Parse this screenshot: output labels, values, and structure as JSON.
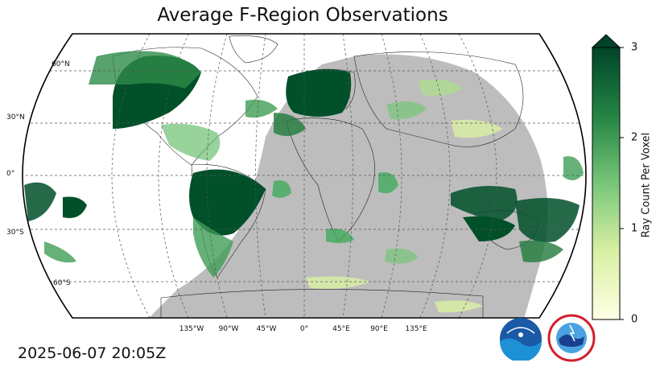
{
  "title": "Average F-Region Observations",
  "timestamp": "2025-06-07 20:05Z",
  "lat_labels": [
    "60°N",
    "30°N",
    "0°",
    "30°S",
    "60°S"
  ],
  "lon_labels": [
    "135°W",
    "90°W",
    "45°W",
    "0°",
    "45°E",
    "90°E",
    "135°E"
  ],
  "colorbar": {
    "label": "Ray Count Per Voxel",
    "ticks": [
      "0",
      "1",
      "2",
      "3"
    ],
    "range": [
      0,
      3
    ],
    "extend": "max",
    "color_low": "#ffffe5",
    "color_mid": "#78c679",
    "color_high": "#004529"
  },
  "map": {
    "projection": "robinson",
    "night_shade_color": "#bdbdbd",
    "coverage_color": "#00502a",
    "gridlines": "dashed"
  },
  "logos": {
    "noaa_icon": "noaa-logo",
    "nws_icon": "nws-logo"
  }
}
